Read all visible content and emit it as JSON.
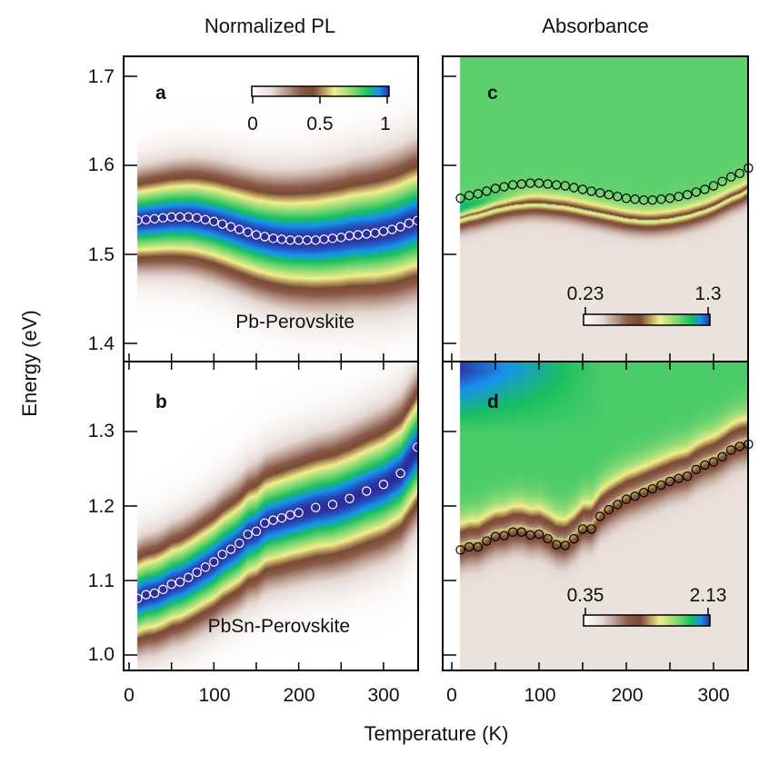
{
  "titles": {
    "left": "Normalized PL",
    "right": "Absorbance"
  },
  "ylabel": "Energy (eV)",
  "xlabel": "Temperature (K)",
  "x_ticks": [
    "0",
    "100",
    "200",
    "300"
  ],
  "colormap": [
    "#ffffff",
    "#e6d9d4",
    "#8c5c4a",
    "#7a4a34",
    "#f3ee8c",
    "#7ad672",
    "#18c060",
    "#1890f0",
    "#2c2c9c"
  ],
  "chart_data": [
    {
      "type": "heatmap",
      "panel": "a",
      "sample_label": "Pb-Perovskite",
      "xlim": [
        -6,
        341
      ],
      "ylim": [
        1.38,
        1.722
      ],
      "yticks": [
        "1.4",
        "1.5",
        "1.6",
        "1.7"
      ],
      "colorbar": {
        "min_label": "0",
        "mid_label": "0.5",
        "max_label": "1"
      },
      "marker_color": "#ffffff",
      "peak_T": [
        10,
        20,
        30,
        40,
        50,
        60,
        70,
        80,
        90,
        100,
        110,
        120,
        130,
        140,
        150,
        160,
        170,
        180,
        190,
        200,
        210,
        220,
        230,
        240,
        250,
        260,
        270,
        280,
        290,
        300,
        310,
        320,
        330,
        340
      ],
      "peak_E": [
        1.538,
        1.539,
        1.54,
        1.541,
        1.542,
        1.542,
        1.542,
        1.541,
        1.539,
        1.537,
        1.534,
        1.531,
        1.528,
        1.525,
        1.522,
        1.52,
        1.518,
        1.517,
        1.516,
        1.516,
        1.516,
        1.516,
        1.517,
        1.518,
        1.519,
        1.521,
        1.522,
        1.523,
        1.524,
        1.526,
        1.528,
        1.531,
        1.535,
        1.538
      ]
    },
    {
      "type": "heatmap",
      "panel": "b",
      "sample_label": "PbSn-Perovskite",
      "xlim": [
        -6,
        341
      ],
      "ylim": [
        0.978,
        1.392
      ],
      "yticks": [
        "1.0",
        "1.1",
        "1.2",
        "1.3"
      ],
      "marker_color": "#ffffff",
      "peak_T": [
        10,
        20,
        30,
        40,
        50,
        60,
        70,
        80,
        90,
        100,
        110,
        120,
        130,
        140,
        150,
        160,
        170,
        180,
        190,
        200,
        220,
        240,
        260,
        280,
        300,
        320,
        340
      ],
      "peak_E": [
        1.076,
        1.081,
        1.083,
        1.088,
        1.095,
        1.098,
        1.104,
        1.111,
        1.118,
        1.125,
        1.135,
        1.142,
        1.15,
        1.162,
        1.166,
        1.177,
        1.181,
        1.184,
        1.188,
        1.191,
        1.198,
        1.202,
        1.21,
        1.22,
        1.229,
        1.244,
        1.279
      ]
    },
    {
      "type": "heatmap",
      "panel": "c",
      "xlim": [
        -10,
        340
      ],
      "ylim": [
        1.38,
        1.722
      ],
      "colorbar": {
        "min_label": "0.23",
        "max_label": "1.3"
      },
      "marker_color": "#000000",
      "edge_T": [
        10,
        20,
        30,
        40,
        50,
        60,
        70,
        80,
        90,
        100,
        110,
        120,
        130,
        140,
        150,
        160,
        170,
        180,
        190,
        200,
        210,
        220,
        230,
        240,
        250,
        260,
        270,
        280,
        290,
        300,
        310,
        320,
        330,
        340
      ],
      "edge_E": [
        1.563,
        1.566,
        1.568,
        1.571,
        1.574,
        1.576,
        1.578,
        1.579,
        1.58,
        1.58,
        1.579,
        1.578,
        1.577,
        1.575,
        1.573,
        1.571,
        1.569,
        1.567,
        1.565,
        1.563,
        1.562,
        1.561,
        1.561,
        1.562,
        1.563,
        1.565,
        1.567,
        1.57,
        1.573,
        1.577,
        1.582,
        1.587,
        1.591,
        1.597
      ]
    },
    {
      "type": "heatmap",
      "panel": "d",
      "xlim": [
        -10,
        340
      ],
      "ylim": [
        0.978,
        1.392
      ],
      "colorbar": {
        "min_label": "0.35",
        "max_label": "2.13"
      },
      "marker_color": "#000000",
      "edge_T": [
        10,
        20,
        30,
        40,
        50,
        60,
        70,
        80,
        90,
        100,
        110,
        120,
        130,
        140,
        150,
        160,
        170,
        180,
        190,
        200,
        210,
        220,
        230,
        240,
        250,
        260,
        270,
        280,
        290,
        300,
        310,
        320,
        330,
        340
      ],
      "edge_E": [
        1.141,
        1.145,
        1.145,
        1.153,
        1.159,
        1.16,
        1.165,
        1.165,
        1.161,
        1.162,
        1.156,
        1.148,
        1.147,
        1.156,
        1.169,
        1.169,
        1.186,
        1.195,
        1.202,
        1.209,
        1.213,
        1.218,
        1.223,
        1.228,
        1.233,
        1.237,
        1.24,
        1.249,
        1.255,
        1.259,
        1.266,
        1.275,
        1.28,
        1.283
      ]
    }
  ]
}
